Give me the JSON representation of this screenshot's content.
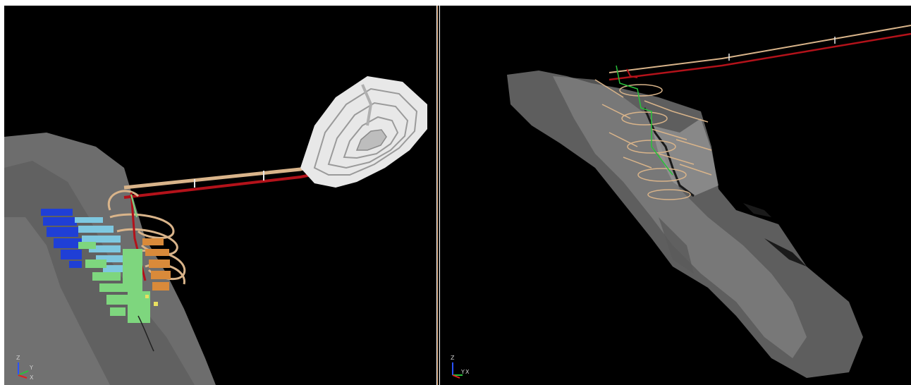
{
  "colors": {
    "background": "#000000",
    "rock_surface": "#7a7a7a",
    "pit_shell": "#e8e8e8",
    "decline_ramp": "#d9b48a",
    "conveyor": "#b3121a",
    "stope_blue": "#1f3fd6",
    "stope_cyan": "#7ec8e0",
    "stope_green": "#7ed67e",
    "stope_orange": "#d98a3a",
    "divider": "#c98a55"
  },
  "viewports": {
    "left": {
      "triad": {
        "icon": "axis-triad-icon",
        "labels": {
          "z": "Z",
          "y": "Y",
          "x": "X"
        }
      }
    },
    "right": {
      "triad": {
        "icon": "axis-triad-icon",
        "labels": {
          "z": "Z",
          "y": "Y",
          "x": "X"
        }
      }
    }
  }
}
